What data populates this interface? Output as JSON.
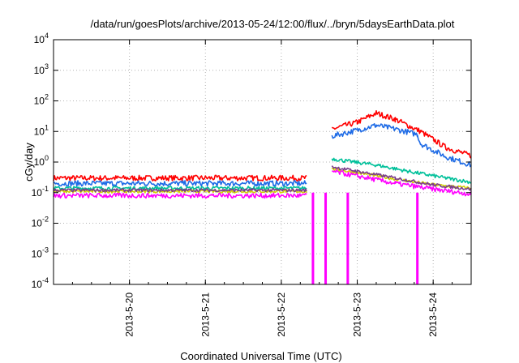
{
  "chart_data": {
    "type": "line",
    "title": "/data/run/goesPlots/archive/2013-05-24/12:00/flux/../bryn/5daysEarthData.plot",
    "xlabel": "Coordinated Universal Time (UTC)",
    "ylabel": "cGy/day",
    "yscale": "log",
    "ylim": [
      0.0001,
      10000
    ],
    "xlim": [
      "2013-05-19 00:00",
      "2013-05-24 12:00"
    ],
    "grid": true,
    "y_ticks": [
      {
        "base": "10",
        "exp": "-4"
      },
      {
        "base": "10",
        "exp": "-3"
      },
      {
        "base": "10",
        "exp": "-2"
      },
      {
        "base": "10",
        "exp": "-1"
      },
      {
        "base": "10",
        "exp": "0"
      },
      {
        "base": "10",
        "exp": "1"
      },
      {
        "base": "10",
        "exp": "2"
      },
      {
        "base": "10",
        "exp": "3"
      },
      {
        "base": "10",
        "exp": "4"
      }
    ],
    "x_ticks": [
      "2013-5-20",
      "2013-5-21",
      "2013-5-22",
      "2013-5-23",
      "2013-5-24"
    ],
    "series": [
      {
        "color": "#ff0000",
        "noise": 0.09,
        "x": [
          "2013-05-19 00:00",
          "2013-05-22 08:00",
          "2013-05-22 12:00",
          "2013-05-22 16:00",
          "2013-05-23 00:00",
          "2013-05-23 06:00",
          "2013-05-23 12:00",
          "2013-05-23 20:00",
          "2013-05-24 04:00",
          "2013-05-24 12:00"
        ],
        "y": [
          0.3,
          0.3,
          null,
          12,
          20,
          40,
          25,
          10,
          3,
          1.6
        ]
      },
      {
        "color": "#1e6be6",
        "noise": 0.09,
        "x": [
          "2013-05-19 00:00",
          "2013-05-22 08:00",
          "2013-05-22 12:00",
          "2013-05-22 16:00",
          "2013-05-23 00:00",
          "2013-05-23 06:00",
          "2013-05-23 12:00",
          "2013-05-23 19:00",
          "2013-05-23 20:00",
          "2013-05-24 04:00",
          "2013-05-24 12:00"
        ],
        "y": [
          0.2,
          0.2,
          null,
          7,
          11,
          16,
          12,
          8,
          4,
          1.5,
          0.8
        ]
      },
      {
        "color": "#00c09a",
        "noise": 0.06,
        "x": [
          "2013-05-19 00:00",
          "2013-05-22 08:00",
          "2013-05-22 12:00",
          "2013-05-22 16:00",
          "2013-05-22 20:00",
          "2013-05-23 06:00",
          "2013-05-23 16:00",
          "2013-05-24 04:00",
          "2013-05-24 12:00"
        ],
        "y": [
          0.14,
          0.14,
          null,
          1.3,
          1.1,
          0.8,
          0.5,
          0.3,
          0.22
        ]
      },
      {
        "color": "#d2d200",
        "noise": 0.05,
        "x": [
          "2013-05-19 00:00",
          "2013-05-22 08:00",
          "2013-05-22 12:00",
          "2013-05-22 16:00",
          "2013-05-23 00:00",
          "2013-05-23 12:00",
          "2013-05-24 00:00",
          "2013-05-24 12:00"
        ],
        "y": [
          0.11,
          0.11,
          null,
          0.6,
          0.45,
          0.28,
          0.18,
          0.14
        ]
      },
      {
        "color": "#7a3c8c",
        "noise": 0.05,
        "x": [
          "2013-05-19 00:00",
          "2013-05-22 08:00",
          "2013-05-22 12:00",
          "2013-05-22 16:00",
          "2013-05-23 00:00",
          "2013-05-23 12:00",
          "2013-05-24 00:00",
          "2013-05-24 12:00"
        ],
        "y": [
          0.12,
          0.12,
          null,
          0.7,
          0.5,
          0.3,
          0.18,
          0.13
        ]
      },
      {
        "color": "#ff00ff",
        "noise": 0.08,
        "x": [
          "2013-05-19 00:00",
          "2013-05-22 08:00",
          "2013-05-22 12:00",
          "2013-05-22 16:00",
          "2013-05-23 00:00",
          "2013-05-23 12:00",
          "2013-05-24 00:00",
          "2013-05-24 12:00"
        ],
        "y": [
          0.08,
          0.08,
          null,
          0.5,
          0.35,
          0.2,
          0.13,
          0.09
        ]
      }
    ],
    "dropouts": [
      {
        "x": "2013-05-22 10:00",
        "color": "#ff00ff"
      },
      {
        "x": "2013-05-22 14:00",
        "color": "#ff00ff"
      },
      {
        "x": "2013-05-22 21:00",
        "color": "#ff00ff"
      },
      {
        "x": "2013-05-23 19:00",
        "color": "#ff00ff"
      }
    ]
  }
}
